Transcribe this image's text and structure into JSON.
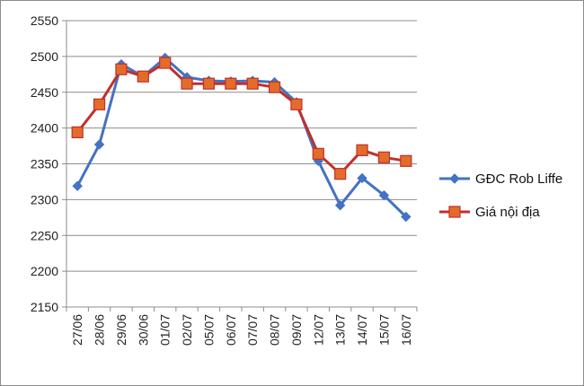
{
  "chart_data": {
    "type": "line",
    "title": "",
    "xlabel": "",
    "ylabel": "",
    "categories": [
      "27/06",
      "28/06",
      "29/06",
      "30/06",
      "01/07",
      "02/07",
      "05/07",
      "06/07",
      "07/07",
      "08/07",
      "09/07",
      "12/07",
      "13/07",
      "14/07",
      "15/07",
      "16/07"
    ],
    "ylim": [
      2150,
      2550
    ],
    "yticks": [
      2150,
      2200,
      2250,
      2300,
      2350,
      2400,
      2450,
      2500,
      2550
    ],
    "grid": "horizontal",
    "legend_position": "right",
    "series": [
      {
        "name": "GĐC Rob Liffe",
        "color": "#4472c4",
        "marker": "diamond",
        "values": [
          2319,
          2377,
          2489,
          2472,
          2498,
          2471,
          2466,
          2465,
          2466,
          2464,
          2436,
          2354,
          2292,
          2330,
          2306,
          2276
        ]
      },
      {
        "name": "Giá nội địa",
        "color": "#c0302c",
        "marker": "square",
        "marker_fill": "#e46c2a",
        "values": [
          2394,
          2433,
          2482,
          2472,
          2491,
          2462,
          2462,
          2462,
          2462,
          2457,
          2433,
          2364,
          2336,
          2369,
          2359,
          2354
        ]
      }
    ]
  }
}
